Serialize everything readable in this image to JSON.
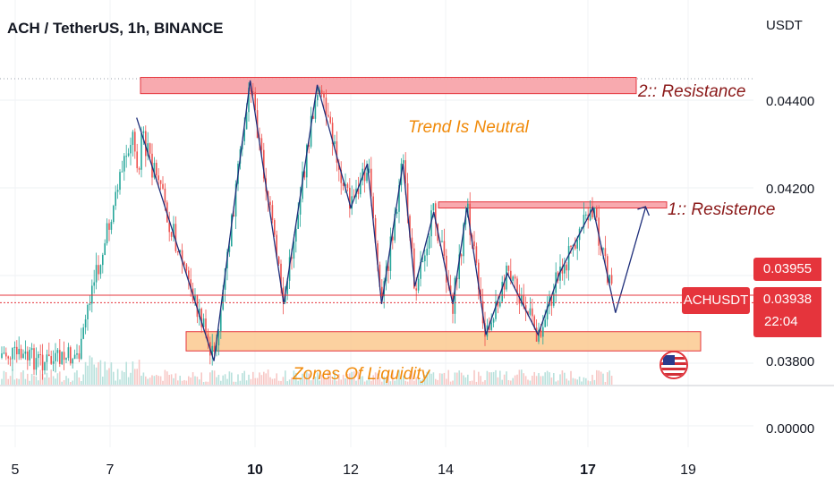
{
  "header": {
    "title": "ACH / TetherUS, 1h, BINANCE",
    "currency": "USDT"
  },
  "price_axis": {
    "ticks": [
      "0.04400",
      "0.04200",
      "0.03800",
      "0.00000"
    ]
  },
  "time_axis": {
    "ticks": [
      {
        "label": "5",
        "bold": false
      },
      {
        "label": "7",
        "bold": false
      },
      {
        "label": "10",
        "bold": true
      },
      {
        "label": "12",
        "bold": false
      },
      {
        "label": "14",
        "bold": false
      },
      {
        "label": "17",
        "bold": true
      },
      {
        "label": "19",
        "bold": false
      }
    ]
  },
  "price_tags": {
    "high_price": "0.03955",
    "symbol": "ACHUSDT",
    "last_price": "0.03938",
    "countdown": "22:04"
  },
  "annotations": {
    "resistance_2": "2:: Resistance",
    "resistance_1": "1:: Resistence",
    "trend": "Trend Is Neutral",
    "liquidity": "Zones Of Liquidity"
  },
  "colors": {
    "up_candle": "#26a69a",
    "down_candle": "#ef5350",
    "resistance_zone": "#f7a1a6",
    "liquidity_zone": "#fcc98f",
    "trend_line": "#1e2e7a",
    "price_line": "#e5343c",
    "label_text": "#8b1a1a",
    "annotation_orange": "#f08a0a"
  },
  "chart_data": {
    "type": "candlestick",
    "title": "ACH / TetherUS, 1h, BINANCE",
    "y_unit": "USDT",
    "x_ticks": [
      "5",
      "7",
      "10",
      "12",
      "14",
      "17",
      "19"
    ],
    "y_ticks": [
      0.044,
      0.042,
      0.038,
      0.0
    ],
    "last_price": 0.03938,
    "high_marker": 0.03955,
    "resistance_zones": [
      {
        "name": "2:: Resistance",
        "low": 0.04415,
        "high": 0.04452
      },
      {
        "name": "1:: Resistence",
        "low": 0.04154,
        "high": 0.04168
      }
    ],
    "liquidity_zone": {
      "name": "Zones Of Liquidity",
      "low": 0.03828,
      "high": 0.03872
    },
    "pattern_path": [
      {
        "day": 7.55,
        "price": 0.0436
      },
      {
        "day": 9.15,
        "price": 0.03805
      },
      {
        "day": 9.9,
        "price": 0.04445
      },
      {
        "day": 10.6,
        "price": 0.03935
      },
      {
        "day": 11.3,
        "price": 0.04435
      },
      {
        "day": 12.0,
        "price": 0.04155
      },
      {
        "day": 12.35,
        "price": 0.04255
      },
      {
        "day": 12.65,
        "price": 0.03935
      },
      {
        "day": 13.1,
        "price": 0.04255
      },
      {
        "day": 13.35,
        "price": 0.03975
      },
      {
        "day": 13.75,
        "price": 0.04145
      },
      {
        "day": 14.15,
        "price": 0.03935
      },
      {
        "day": 14.45,
        "price": 0.04155
      },
      {
        "day": 14.85,
        "price": 0.03865
      },
      {
        "day": 15.3,
        "price": 0.04005
      },
      {
        "day": 15.95,
        "price": 0.03865
      },
      {
        "day": 16.4,
        "price": 0.04005
      },
      {
        "day": 17.1,
        "price": 0.04155
      },
      {
        "day": 17.55,
        "price": 0.03915
      },
      {
        "day": 18.15,
        "price": 0.04155
      }
    ]
  }
}
